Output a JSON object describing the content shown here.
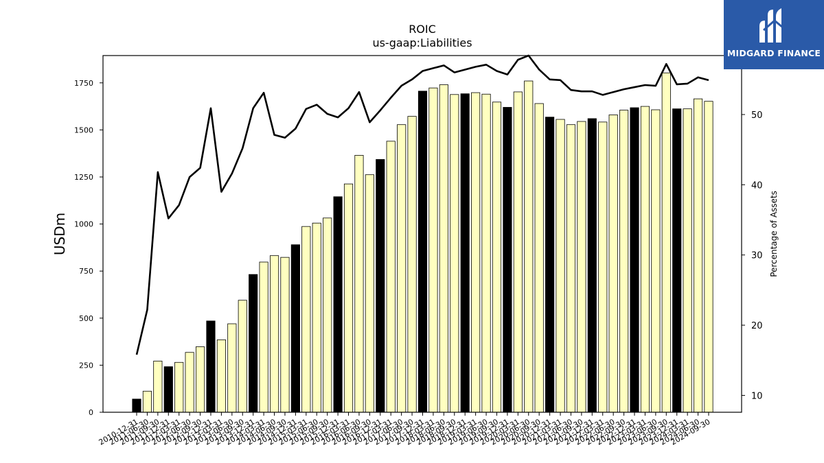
{
  "brand": {
    "name": "MIDGARD FINANCE",
    "logo_color": "#2a5aa8"
  },
  "chart_data": {
    "type": "bar",
    "title": "ROIC",
    "subtitle": "us-gaap:Liabilities",
    "ylabel": "USDm",
    "y2label": "Percentage of Assets",
    "ylim": [
      0,
      1895
    ],
    "y2lim": [
      7.6,
      58.4
    ],
    "yticks": [
      0,
      250,
      500,
      750,
      1000,
      1250,
      1500,
      1750
    ],
    "y2ticks": [
      10,
      20,
      30,
      40,
      50
    ],
    "bar_color_highlight": "#000000",
    "bar_color_normal": "#ffffc0",
    "categories": [
      "2010-12-31",
      "2011-06-30",
      "2011-09-30",
      "2011-12-31",
      "2012-03-31",
      "2012-06-30",
      "2012-09-30",
      "2012-12-31",
      "2013-03-31",
      "2013-06-30",
      "2013-09-30",
      "2013-12-31",
      "2014-03-31",
      "2014-06-30",
      "2014-09-30",
      "2014-12-31",
      "2015-03-31",
      "2015-06-30",
      "2015-09-30",
      "2015-12-31",
      "2016-03-31",
      "2016-06-30",
      "2016-09-30",
      "2016-12-31",
      "2017-03-31",
      "2017-06-30",
      "2017-09-30",
      "2017-12-31",
      "2018-03-31",
      "2018-06-30",
      "2018-09-30",
      "2018-12-31",
      "2019-03-31",
      "2019-06-30",
      "2019-09-30",
      "2019-12-31",
      "2020-03-31",
      "2020-06-30",
      "2020-09-30",
      "2020-12-31",
      "2021-03-31",
      "2021-06-30",
      "2021-09-30",
      "2021-12-31",
      "2022-03-31",
      "2022-06-30",
      "2022-09-30",
      "2022-12-31",
      "2023-03-31",
      "2023-06-30",
      "2023-09-30",
      "2023-12-31",
      "2024-03-31",
      "2024-06-30",
      "2024-09-30"
    ],
    "series": [
      {
        "type": "bar",
        "values": [
          70,
          112,
          272,
          242,
          265,
          318,
          348,
          485,
          385,
          470,
          595,
          732,
          798,
          832,
          823,
          890,
          987,
          1005,
          1032,
          1145,
          1213,
          1365,
          1262,
          1343,
          1440,
          1528,
          1572,
          1706,
          1723,
          1740,
          1688,
          1692,
          1698,
          1690,
          1648,
          1620,
          1702,
          1760,
          1640,
          1568,
          1556,
          1528,
          1545,
          1560,
          1542,
          1580,
          1605,
          1618,
          1625,
          1607,
          1803,
          1612,
          1612,
          1665,
          1652
        ],
        "highlight": [
          true,
          false,
          false,
          true,
          false,
          false,
          false,
          true,
          false,
          false,
          false,
          true,
          false,
          false,
          false,
          true,
          false,
          false,
          false,
          true,
          false,
          false,
          false,
          true,
          false,
          false,
          false,
          true,
          false,
          false,
          false,
          true,
          false,
          false,
          false,
          true,
          false,
          false,
          false,
          true,
          false,
          false,
          false,
          true,
          false,
          false,
          false,
          true,
          false,
          false,
          false,
          true,
          false,
          false,
          false
        ]
      },
      {
        "type": "line",
        "axis": "right",
        "color": "#000000",
        "values": [
          15.8,
          22.2,
          41.8,
          35.2,
          37.1,
          41.1,
          42.4,
          50.9,
          39.0,
          41.6,
          45.2,
          50.9,
          53.1,
          47.1,
          46.7,
          48.0,
          50.8,
          51.4,
          50.1,
          49.6,
          50.9,
          53.2,
          48.9,
          50.6,
          52.4,
          54.1,
          55.0,
          56.2,
          56.6,
          57.0,
          56.0,
          56.4,
          56.8,
          57.1,
          56.2,
          55.7,
          57.8,
          58.4,
          56.4,
          55.0,
          54.9,
          53.5,
          53.3,
          53.3,
          52.8,
          53.2,
          53.6,
          53.9,
          54.2,
          54.1,
          57.2,
          54.3,
          54.4,
          55.3,
          54.9
        ]
      }
    ]
  }
}
